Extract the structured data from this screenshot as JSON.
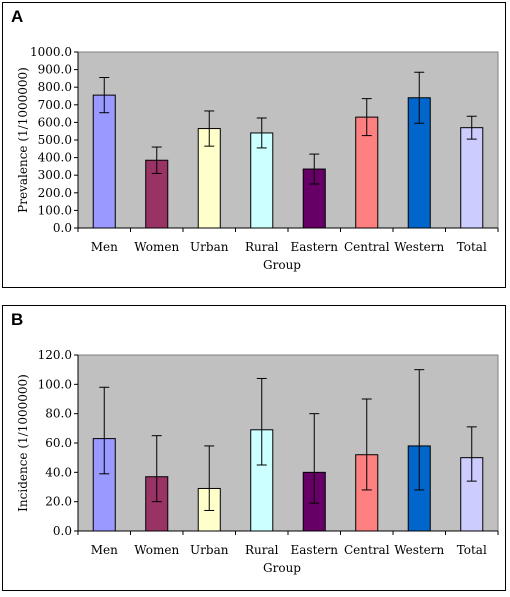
{
  "chart_data": [
    {
      "panel_label": "A",
      "type": "bar",
      "categories": [
        "Men",
        "Women",
        "Urban",
        "Rural",
        "Eastern",
        "Central",
        "Western",
        "Total"
      ],
      "values": [
        755,
        385,
        565,
        540,
        335,
        630,
        740,
        570
      ],
      "error_high": [
        855,
        460,
        665,
        625,
        420,
        735,
        885,
        635
      ],
      "error_low": [
        655,
        310,
        465,
        455,
        250,
        525,
        595,
        505
      ],
      "colors": [
        "#9999ff",
        "#993366",
        "#ffffcc",
        "#ccffff",
        "#660066",
        "#ff8080",
        "#0066cc",
        "#ccccff"
      ],
      "xlabel": "Group",
      "ylabel": "Prevalence (1/1000000)",
      "ylim": [
        0,
        1000
      ],
      "yticks": [
        0,
        100,
        200,
        300,
        400,
        500,
        600,
        700,
        800,
        900,
        1000
      ],
      "ytick_labels": [
        "0.0",
        "100.0",
        "200.0",
        "300.0",
        "400.0",
        "500.0",
        "600.0",
        "700.0",
        "800.0",
        "900.0",
        "1000.0"
      ],
      "plot_background": "#c0c0c0",
      "grid": false
    },
    {
      "panel_label": "B",
      "type": "bar",
      "categories": [
        "Men",
        "Women",
        "Urban",
        "Rural",
        "Eastern",
        "Central",
        "Western",
        "Total"
      ],
      "values": [
        63,
        37,
        29,
        69,
        40,
        52,
        58,
        50
      ],
      "error_high": [
        98,
        65,
        58,
        104,
        80,
        90,
        110,
        71
      ],
      "error_low": [
        39,
        20,
        14,
        45,
        19,
        28,
        28,
        34
      ],
      "colors": [
        "#9999ff",
        "#993366",
        "#ffffcc",
        "#ccffff",
        "#660066",
        "#ff8080",
        "#0066cc",
        "#ccccff"
      ],
      "xlabel": "Group",
      "ylabel": "Incidence (1/1000000)",
      "ylim": [
        0,
        120
      ],
      "yticks": [
        0,
        20,
        40,
        60,
        80,
        100,
        120
      ],
      "ytick_labels": [
        "0.0",
        "20.0",
        "40.0",
        "60.0",
        "80.0",
        "100.0",
        "120.0"
      ],
      "plot_background": "#c0c0c0",
      "grid": false
    }
  ]
}
